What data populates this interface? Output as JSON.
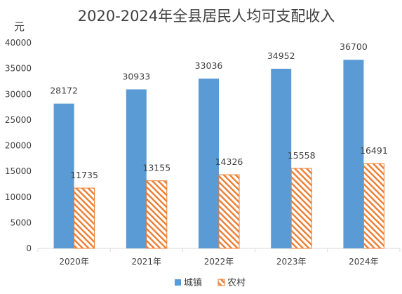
{
  "chart_data": {
    "type": "bar",
    "title": "2020-2024年全县居民人均可支配收入",
    "unit_label": "元",
    "categories": [
      "2020年",
      "2021年",
      "2022年",
      "2023年",
      "2024年"
    ],
    "series": [
      {
        "name": "城镇",
        "values": [
          28172,
          30933,
          33036,
          34952,
          36700
        ],
        "color": "#5b9bd5",
        "fill": "solid"
      },
      {
        "name": "农村",
        "values": [
          11735,
          13155,
          14326,
          15558,
          16491
        ],
        "color": "#ed7d31",
        "fill": "diagonal-hatch"
      }
    ],
    "ylim": [
      0,
      40000
    ],
    "yticks": [
      0,
      5000,
      10000,
      15000,
      20000,
      25000,
      30000,
      35000,
      40000
    ],
    "grid": false,
    "legend_position": "bottom"
  }
}
